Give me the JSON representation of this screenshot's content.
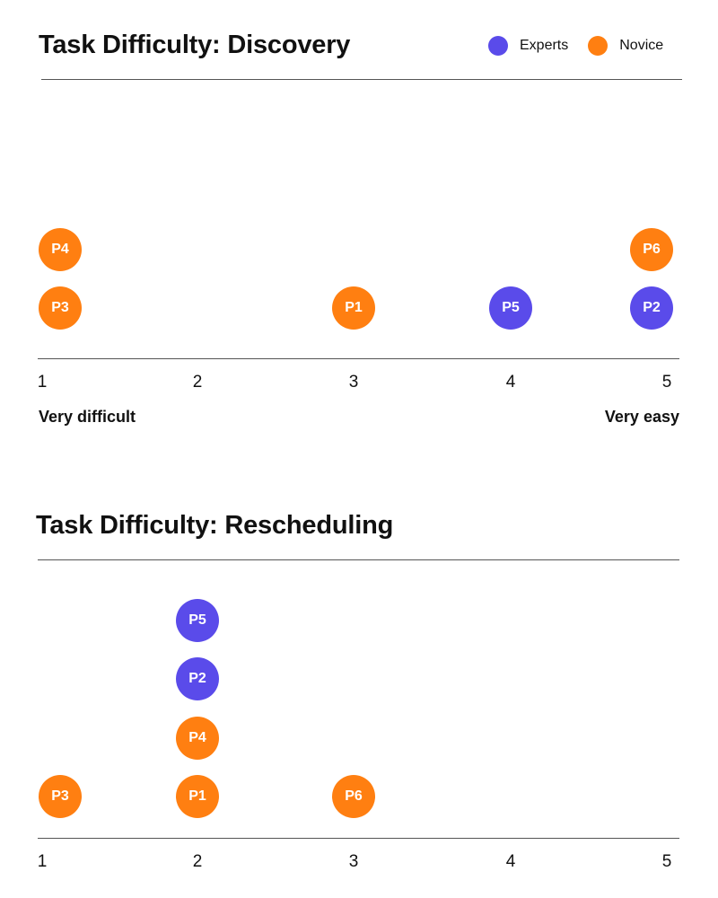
{
  "legend": {
    "items": [
      {
        "label": "Experts",
        "color": "#5a4bea"
      },
      {
        "label": "Novice",
        "color": "#ff7f11"
      }
    ]
  },
  "chart_data": [
    {
      "type": "scatter",
      "title": "Task Difficulty: Discovery",
      "x_ticks": [
        "1",
        "2",
        "3",
        "4",
        "5"
      ],
      "xlim": [
        1,
        5
      ],
      "scale_low_label": "Very difficult",
      "scale_high_label": "Very easy",
      "points": [
        {
          "label": "P3",
          "x": 1,
          "group": "Novice"
        },
        {
          "label": "P4",
          "x": 1,
          "group": "Novice"
        },
        {
          "label": "P1",
          "x": 3,
          "group": "Novice"
        },
        {
          "label": "P5",
          "x": 4,
          "group": "Experts"
        },
        {
          "label": "P2",
          "x": 5,
          "group": "Experts"
        },
        {
          "label": "P6",
          "x": 5,
          "group": "Novice"
        }
      ]
    },
    {
      "type": "scatter",
      "title": "Task Difficulty: Rescheduling",
      "x_ticks": [
        "1",
        "2",
        "3",
        "4",
        "5"
      ],
      "xlim": [
        1,
        5
      ],
      "points": [
        {
          "label": "P3",
          "x": 1,
          "group": "Novice"
        },
        {
          "label": "P1",
          "x": 2,
          "group": "Novice"
        },
        {
          "label": "P4",
          "x": 2,
          "group": "Novice"
        },
        {
          "label": "P2",
          "x": 2,
          "group": "Experts"
        },
        {
          "label": "P5",
          "x": 2,
          "group": "Experts"
        },
        {
          "label": "P6",
          "x": 3,
          "group": "Novice"
        }
      ]
    }
  ]
}
